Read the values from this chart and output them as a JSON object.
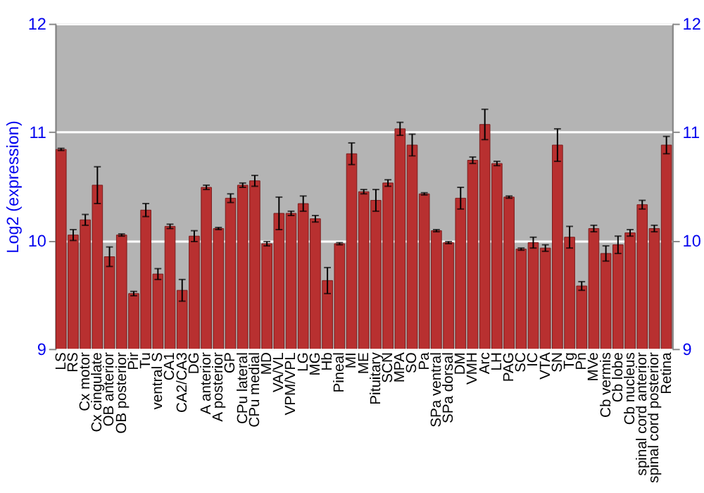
{
  "chart_data": {
    "type": "bar",
    "ylabel": "Log2 (expression)",
    "categories": [
      "LS",
      "RS",
      "Cx motor",
      "Cx cingulate",
      "OB anterior",
      "OB posterior",
      "Pir",
      "Tu",
      "ventral S",
      "CA1",
      "CA2/CA3",
      "DG",
      "A anterior",
      "A posterior",
      "GP",
      "CPu lateral",
      "CPu medial",
      "MD",
      "VA/VL",
      "VPM/VPL",
      "LG",
      "MG",
      "Hb",
      "Pineal",
      "MI",
      "ME",
      "Pituitary",
      "SCN",
      "MPA",
      "SO",
      "Pa",
      "SPa ventral",
      "SPa dorsal",
      "DM",
      "VMH",
      "Arc",
      "LH",
      "PAG",
      "SC",
      "IC",
      "VTA",
      "SN",
      "Tg",
      "Pn",
      "MVe",
      "Cb vermis",
      "Cb lobe",
      "Cb nucleus",
      "spinal cord anterior",
      "spinal cord posterior",
      "Retina"
    ],
    "series": [
      {
        "color": "#b83030",
        "values": [
          10.84,
          10.05,
          10.19,
          10.51,
          9.85,
          10.05,
          9.51,
          10.28,
          9.69,
          10.13,
          9.54,
          10.04,
          10.49,
          10.11,
          10.39,
          10.51,
          10.55,
          9.97,
          10.25,
          10.25,
          10.34,
          10.2,
          9.63,
          9.97,
          10.8,
          10.45,
          10.37,
          10.53,
          11.03,
          10.88,
          10.43,
          10.09,
          9.98,
          10.39,
          10.74,
          11.07,
          10.71,
          10.4,
          9.92,
          9.98,
          9.93,
          10.88,
          10.03,
          9.58,
          10.11,
          9.88,
          9.96,
          10.07,
          10.33,
          10.11,
          10.88
        ],
        "errors": [
          0.01,
          0.05,
          0.05,
          0.17,
          0.09,
          0.01,
          0.02,
          0.06,
          0.05,
          0.02,
          0.1,
          0.05,
          0.02,
          0.01,
          0.04,
          0.02,
          0.05,
          0.02,
          0.15,
          0.02,
          0.07,
          0.03,
          0.12,
          0.01,
          0.1,
          0.02,
          0.1,
          0.03,
          0.06,
          0.1,
          0.01,
          0.01,
          0.01,
          0.1,
          0.03,
          0.14,
          0.02,
          0.01,
          0.01,
          0.05,
          0.03,
          0.15,
          0.1,
          0.04,
          0.03,
          0.07,
          0.08,
          0.03,
          0.04,
          0.03,
          0.08
        ]
      }
    ],
    "ylim": [
      9,
      12
    ],
    "yticks": [
      9,
      10,
      11,
      12
    ],
    "y2lim": [
      9,
      12
    ],
    "y2ticks": [
      9,
      10,
      11,
      12
    ],
    "grid": "y"
  }
}
